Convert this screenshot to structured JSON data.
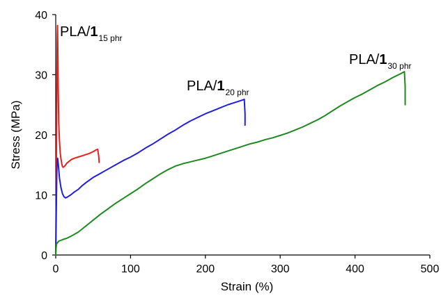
{
  "chart_data": {
    "type": "line",
    "xlabel": "Strain (%)",
    "ylabel": "Stress (MPa)",
    "xlim": [
      0,
      500
    ],
    "ylim": [
      0,
      40
    ],
    "xticks": [
      0,
      100,
      200,
      300,
      400,
      500
    ],
    "yticks": [
      0,
      10,
      20,
      30,
      40
    ],
    "xtick_labels": [
      "0",
      "100",
      "200",
      "300",
      "400",
      "500"
    ],
    "ytick_labels": [
      "0",
      "10",
      "20",
      "30",
      "40"
    ],
    "grid": false,
    "series": [
      {
        "label_prefix": "PLA/",
        "label_bold": "1",
        "label_sub": "15 phr",
        "color": "#e8201e",
        "points": [
          [
            0,
            0
          ],
          [
            0.4,
            6
          ],
          [
            0.8,
            14
          ],
          [
            1.2,
            22
          ],
          [
            1.6,
            30
          ],
          [
            2.0,
            36
          ],
          [
            2.4,
            38.2
          ],
          [
            2.8,
            34
          ],
          [
            3.3,
            28
          ],
          [
            4,
            22
          ],
          [
            5,
            19
          ],
          [
            6,
            17
          ],
          [
            7,
            16
          ],
          [
            8,
            15.2
          ],
          [
            9,
            14.7
          ],
          [
            10,
            14.6
          ],
          [
            12,
            14.8
          ],
          [
            15,
            15.3
          ],
          [
            18,
            15.6
          ],
          [
            21,
            15.9
          ],
          [
            25,
            16.1
          ],
          [
            30,
            16.3
          ],
          [
            35,
            16.5
          ],
          [
            40,
            16.7
          ],
          [
            45,
            16.9
          ],
          [
            50,
            17.2
          ],
          [
            54,
            17.5
          ],
          [
            56,
            17.6
          ],
          [
            57.5,
            16.4
          ],
          [
            58,
            15.4
          ]
        ]
      },
      {
        "label_prefix": "PLA/",
        "label_bold": "1",
        "label_sub": "20 phr",
        "color": "#1f1fe0",
        "points": [
          [
            0,
            0
          ],
          [
            0.5,
            5
          ],
          [
            1,
            10
          ],
          [
            1.5,
            14
          ],
          [
            2,
            15.8
          ],
          [
            2.5,
            16.1
          ],
          [
            3,
            15.7
          ],
          [
            4,
            14.3
          ],
          [
            5,
            12.8
          ],
          [
            7,
            11.2
          ],
          [
            9,
            10.2
          ],
          [
            11,
            9.7
          ],
          [
            13,
            9.5
          ],
          [
            15,
            9.6
          ],
          [
            20,
            10.0
          ],
          [
            25,
            10.5
          ],
          [
            30,
            10.9
          ],
          [
            35,
            11.5
          ],
          [
            40,
            12.0
          ],
          [
            50,
            12.9
          ],
          [
            60,
            13.6
          ],
          [
            70,
            14.3
          ],
          [
            80,
            15.0
          ],
          [
            90,
            15.7
          ],
          [
            100,
            16.3
          ],
          [
            110,
            17.0
          ],
          [
            120,
            17.8
          ],
          [
            130,
            18.5
          ],
          [
            140,
            19.3
          ],
          [
            150,
            20.1
          ],
          [
            160,
            20.8
          ],
          [
            170,
            21.6
          ],
          [
            180,
            22.3
          ],
          [
            190,
            22.9
          ],
          [
            200,
            23.5
          ],
          [
            210,
            24.0
          ],
          [
            220,
            24.5
          ],
          [
            230,
            25.0
          ],
          [
            240,
            25.4
          ],
          [
            250,
            25.8
          ],
          [
            252,
            25.9
          ],
          [
            253,
            23.5
          ],
          [
            253,
            21.6
          ]
        ]
      },
      {
        "label_prefix": "PLA/",
        "label_bold": "1",
        "label_sub": "30 phr",
        "color": "#1e8a1e",
        "points": [
          [
            0,
            0
          ],
          [
            0.5,
            1.2
          ],
          [
            1,
            1.8
          ],
          [
            2,
            2.0
          ],
          [
            4,
            2.3
          ],
          [
            6,
            2.4
          ],
          [
            10,
            2.6
          ],
          [
            15,
            2.8
          ],
          [
            20,
            3.1
          ],
          [
            30,
            3.8
          ],
          [
            40,
            4.8
          ],
          [
            50,
            5.8
          ],
          [
            60,
            6.8
          ],
          [
            70,
            7.7
          ],
          [
            80,
            8.6
          ],
          [
            90,
            9.4
          ],
          [
            100,
            10.2
          ],
          [
            110,
            11.0
          ],
          [
            120,
            11.9
          ],
          [
            130,
            12.7
          ],
          [
            140,
            13.5
          ],
          [
            150,
            14.2
          ],
          [
            160,
            14.8
          ],
          [
            170,
            15.2
          ],
          [
            180,
            15.5
          ],
          [
            190,
            15.8
          ],
          [
            200,
            16.1
          ],
          [
            210,
            16.5
          ],
          [
            220,
            16.9
          ],
          [
            230,
            17.3
          ],
          [
            240,
            17.7
          ],
          [
            250,
            18.1
          ],
          [
            260,
            18.5
          ],
          [
            270,
            18.8
          ],
          [
            280,
            19.2
          ],
          [
            290,
            19.5
          ],
          [
            300,
            19.9
          ],
          [
            310,
            20.3
          ],
          [
            320,
            20.8
          ],
          [
            330,
            21.3
          ],
          [
            340,
            21.9
          ],
          [
            350,
            22.5
          ],
          [
            360,
            23.2
          ],
          [
            370,
            24.0
          ],
          [
            380,
            24.8
          ],
          [
            390,
            25.5
          ],
          [
            400,
            26.2
          ],
          [
            410,
            26.8
          ],
          [
            420,
            27.5
          ],
          [
            430,
            28.2
          ],
          [
            440,
            28.8
          ],
          [
            450,
            29.5
          ],
          [
            460,
            30.1
          ],
          [
            466,
            30.5
          ],
          [
            467,
            28
          ],
          [
            467,
            25.0
          ]
        ]
      }
    ]
  }
}
